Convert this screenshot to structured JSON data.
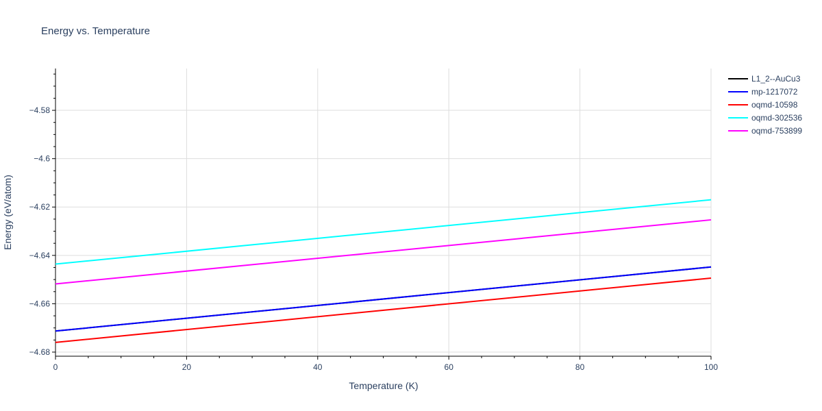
{
  "chart_data": {
    "type": "line",
    "title": "Energy vs. Temperature",
    "xlabel": "Temperature (K)",
    "ylabel": "Energy (eV/atom)",
    "xlim": [
      0,
      100
    ],
    "ylim": [
      -4.6817,
      -4.5627
    ],
    "x_ticks": [
      0,
      20,
      40,
      60,
      80,
      100
    ],
    "x_tick_labels": [
      "0",
      "20",
      "40",
      "60",
      "80",
      "100"
    ],
    "y_ticks": [
      -4.68,
      -4.66,
      -4.64,
      -4.62,
      -4.6,
      -4.58
    ],
    "y_tick_labels": [
      "−4.68",
      "−4.66",
      "−4.64",
      "−4.62",
      "−4.6",
      "−4.58"
    ],
    "grid": true,
    "legend_position": "top-right",
    "series": [
      {
        "name": "L1_2--AuCu3",
        "color": "#000000",
        "x": [
          0,
          100
        ],
        "y": [
          -4.6713,
          -4.6448
        ]
      },
      {
        "name": "mp-1217072",
        "color": "#0000ff",
        "x": [
          0,
          100
        ],
        "y": [
          -4.6713,
          -4.6448
        ]
      },
      {
        "name": "oqmd-10598",
        "color": "#ff0000",
        "x": [
          0,
          100
        ],
        "y": [
          -4.676,
          -4.6494
        ]
      },
      {
        "name": "oqmd-302536",
        "color": "#00ffff",
        "x": [
          0,
          100
        ],
        "y": [
          -4.6436,
          -4.617
        ]
      },
      {
        "name": "oqmd-753899",
        "color": "#ff00ff",
        "x": [
          0,
          100
        ],
        "y": [
          -4.6518,
          -4.6253
        ]
      }
    ]
  }
}
